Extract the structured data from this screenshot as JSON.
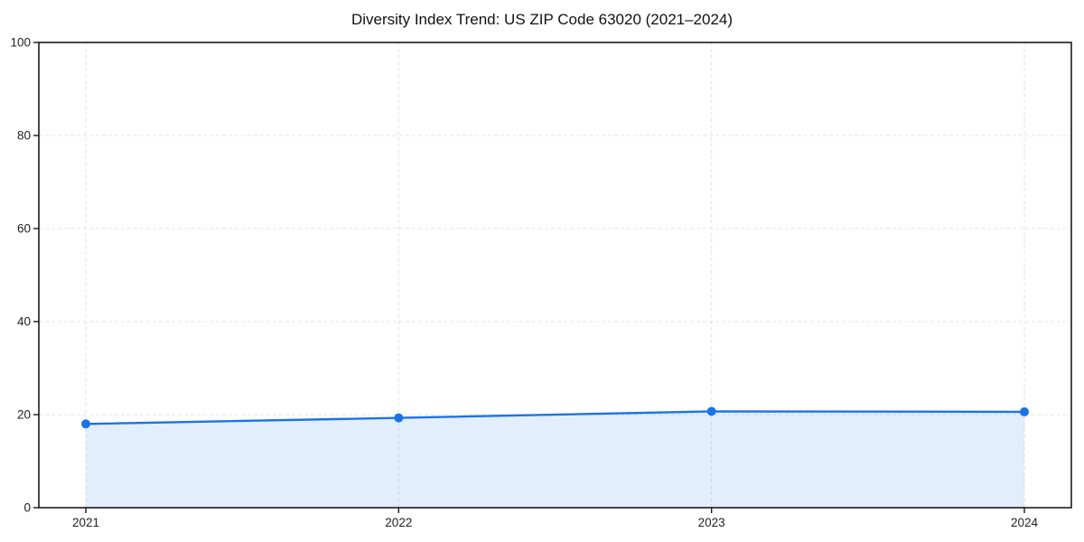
{
  "chart_data": {
    "type": "area",
    "title": "Diversity Index Trend: US ZIP Code 63020 (2021–2024)",
    "series_name": "Diversity Index",
    "x": [
      2021,
      2022,
      2023,
      2024
    ],
    "values": [
      18.0,
      19.3,
      20.7,
      20.6
    ],
    "xlabel": "",
    "ylabel": "",
    "ylim": [
      0,
      100
    ],
    "yticks": [
      0,
      20,
      40,
      60,
      80,
      100
    ],
    "xtick_labels": [
      "2021",
      "2022",
      "2023",
      "2024"
    ],
    "grid": true,
    "grid_style": "dashed",
    "legend_position": "none",
    "marker": "circle",
    "colors": {
      "line": "#1a73e8",
      "marker": "#1a73e8",
      "fill": "#1a73e8",
      "fill_opacity": 0.12,
      "grid": "#e3e3e3",
      "axis": "#1a1a1a",
      "title_text": "#111111",
      "tick_text": "#1f1f1f",
      "background": "#ffffff"
    }
  }
}
